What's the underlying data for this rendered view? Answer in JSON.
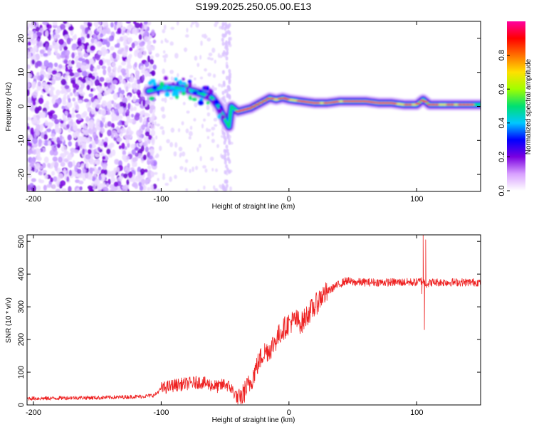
{
  "figure_title": "S199.2025.250.05.00.E13",
  "colors": {
    "snr_line": "#ee2222",
    "colorbar": [
      "#ffffff",
      "#d8a0ff",
      "#7a00e0",
      "#0000ff",
      "#00c8ff",
      "#00e070",
      "#a0ff00",
      "#ffe000",
      "#ff7000",
      "#ff0000",
      "#ff00a0"
    ]
  },
  "chart_data": [
    {
      "type": "heatmap",
      "title": "",
      "xlabel": "Height of straight line (km)",
      "ylabel": "Frequency (Hz)",
      "xlim": [
        -205,
        150
      ],
      "ylim": [
        -25,
        25
      ],
      "xticks": [
        -200,
        -100,
        0,
        100
      ],
      "yticks": [
        -20,
        -10,
        0,
        10,
        20
      ],
      "ridge": {
        "x": [
          -110,
          -100,
          -90,
          -80,
          -70,
          -60,
          -55,
          -50,
          -47,
          -45,
          -40,
          -35,
          -30,
          -25,
          -20,
          -15,
          -10,
          -5,
          0,
          10,
          20,
          30,
          40,
          50,
          60,
          70,
          80,
          90,
          100,
          105,
          110,
          120,
          130,
          140,
          150
        ],
        "y": [
          4.5,
          5.5,
          5.5,
          5,
          4,
          2.5,
          0,
          -4,
          -6,
          0,
          -1.5,
          -1,
          -0.5,
          0.5,
          1.5,
          2.5,
          2,
          2.5,
          2,
          1.5,
          1,
          1,
          1.5,
          1.5,
          1.5,
          1,
          1,
          0.5,
          0.5,
          2,
          0.5,
          0.5,
          0.5,
          0.5,
          0.5
        ]
      },
      "noise_region_km": [
        -205,
        -110
      ],
      "colorbar": {
        "label": "Normalized spectral amplitude",
        "range": [
          0,
          1
        ],
        "ticks": [
          "0.0",
          "0.2",
          "0.4",
          "0.6",
          "0.8"
        ]
      }
    },
    {
      "type": "line",
      "title": "",
      "xlabel": "Height of straight line (km)",
      "ylabel": "SNR (10 * v/v)",
      "xlim": [
        -205,
        150
      ],
      "ylim": [
        0,
        520
      ],
      "xticks": [
        -200,
        -100,
        0,
        100
      ],
      "yticks": [
        0,
        100,
        200,
        300,
        400,
        500
      ],
      "series": [
        {
          "name": "SNR",
          "x": [
            -205,
            -190,
            -170,
            -150,
            -130,
            -115,
            -105,
            -100,
            -95,
            -90,
            -80,
            -70,
            -60,
            -55,
            -50,
            -45,
            -40,
            -38,
            -35,
            -30,
            -25,
            -20,
            -15,
            -10,
            -5,
            0,
            5,
            10,
            15,
            20,
            25,
            30,
            35,
            40,
            45,
            50,
            60,
            70,
            80,
            90,
            100,
            104,
            106,
            108,
            112,
            120,
            130,
            140,
            150
          ],
          "y": [
            20,
            20,
            22,
            22,
            24,
            26,
            30,
            50,
            55,
            60,
            65,
            70,
            60,
            55,
            65,
            50,
            20,
            12,
            40,
            70,
            120,
            160,
            170,
            200,
            230,
            250,
            260,
            250,
            280,
            300,
            330,
            345,
            360,
            370,
            380,
            375,
            375,
            375,
            375,
            375,
            375,
            380,
            375,
            370,
            375,
            375,
            375,
            375,
            375
          ]
        }
      ],
      "spikes": [
        {
          "x": 104,
          "y": 340
        },
        {
          "x": 105,
          "y": 520
        },
        {
          "x": 106,
          "y": 230
        },
        {
          "x": 107,
          "y": 505
        }
      ]
    }
  ]
}
